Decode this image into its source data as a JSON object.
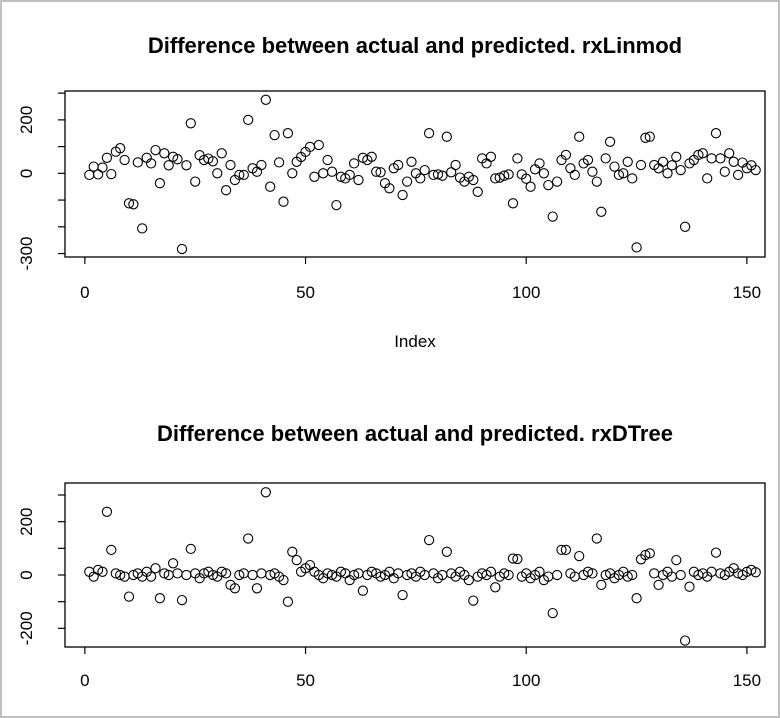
{
  "window": {
    "background": "#ffffff",
    "border_color": "#c0c0c0",
    "plot_color": "#000000"
  },
  "chart_data": [
    {
      "type": "scatter",
      "title": "Difference between actual and predicted. rxLinmod",
      "xlabel": "Index",
      "ylabel": "",
      "marker": "open-circle",
      "marker_color": "#000000",
      "grid": false,
      "xlim": [
        -4.5,
        154.1
      ],
      "ylim": [
        -313,
        308
      ],
      "xticks": [
        0,
        50,
        100,
        150
      ],
      "xtick_labels": [
        "0",
        "50",
        "100",
        "150"
      ],
      "yticks": [
        300,
        200,
        100,
        0,
        -100,
        -200,
        -300
      ],
      "ytick_labels_shown": {
        "200": "200",
        "0": "0",
        "-300": "-300"
      },
      "points": [
        [
          1,
          -6
        ],
        [
          2,
          25
        ],
        [
          3,
          -4
        ],
        [
          4,
          22
        ],
        [
          5,
          58
        ],
        [
          6,
          -3
        ],
        [
          7,
          81
        ],
        [
          8,
          94
        ],
        [
          9,
          50
        ],
        [
          10,
          -112
        ],
        [
          11,
          -116
        ],
        [
          12,
          41
        ],
        [
          13,
          -206
        ],
        [
          14,
          58
        ],
        [
          15,
          37
        ],
        [
          16,
          87
        ],
        [
          17,
          -37
        ],
        [
          18,
          75
        ],
        [
          19,
          30
        ],
        [
          20,
          62
        ],
        [
          21,
          53
        ],
        [
          22,
          -283
        ],
        [
          23,
          30
        ],
        [
          24,
          187
        ],
        [
          25,
          -31
        ],
        [
          26,
          68
        ],
        [
          27,
          50
        ],
        [
          28,
          55
        ],
        [
          29,
          45
        ],
        [
          30,
          0
        ],
        [
          31,
          75
        ],
        [
          32,
          -63
        ],
        [
          33,
          31
        ],
        [
          34,
          -25
        ],
        [
          35,
          -6
        ],
        [
          36,
          -6
        ],
        [
          37,
          200
        ],
        [
          38,
          19
        ],
        [
          39,
          6
        ],
        [
          40,
          31
        ],
        [
          41,
          275
        ],
        [
          42,
          -50
        ],
        [
          43,
          143
        ],
        [
          44,
          41
        ],
        [
          45,
          -106
        ],
        [
          46,
          150
        ],
        [
          47,
          0
        ],
        [
          48,
          43
        ],
        [
          49,
          61
        ],
        [
          50,
          80
        ],
        [
          51,
          99
        ],
        [
          52,
          -13
        ],
        [
          53,
          106
        ],
        [
          54,
          0
        ],
        [
          55,
          50
        ],
        [
          56,
          6
        ],
        [
          57,
          -119
        ],
        [
          58,
          -13
        ],
        [
          59,
          -19
        ],
        [
          60,
          -6
        ],
        [
          61,
          37
        ],
        [
          62,
          -25
        ],
        [
          63,
          58
        ],
        [
          64,
          50
        ],
        [
          65,
          62
        ],
        [
          66,
          6
        ],
        [
          67,
          4
        ],
        [
          68,
          -37
        ],
        [
          69,
          -56
        ],
        [
          70,
          19
        ],
        [
          71,
          31
        ],
        [
          72,
          -81
        ],
        [
          73,
          -31
        ],
        [
          74,
          43
        ],
        [
          75,
          0
        ],
        [
          76,
          -19
        ],
        [
          77,
          12
        ],
        [
          78,
          150
        ],
        [
          79,
          -6
        ],
        [
          80,
          -4
        ],
        [
          81,
          -9
        ],
        [
          82,
          137
        ],
        [
          83,
          4
        ],
        [
          84,
          31
        ],
        [
          85,
          -16
        ],
        [
          86,
          -31
        ],
        [
          87,
          -13
        ],
        [
          88,
          -25
        ],
        [
          89,
          -69
        ],
        [
          90,
          56
        ],
        [
          91,
          37
        ],
        [
          92,
          62
        ],
        [
          93,
          -19
        ],
        [
          94,
          -16
        ],
        [
          95,
          -9
        ],
        [
          96,
          -4
        ],
        [
          97,
          -112
        ],
        [
          98,
          56
        ],
        [
          99,
          -4
        ],
        [
          100,
          -20
        ],
        [
          101,
          -50
        ],
        [
          102,
          15
        ],
        [
          103,
          37
        ],
        [
          104,
          0
        ],
        [
          105,
          -44
        ],
        [
          106,
          -162
        ],
        [
          107,
          -31
        ],
        [
          108,
          50
        ],
        [
          109,
          69
        ],
        [
          110,
          19
        ],
        [
          111,
          -6
        ],
        [
          112,
          137
        ],
        [
          113,
          37
        ],
        [
          114,
          50
        ],
        [
          115,
          6
        ],
        [
          116,
          -31
        ],
        [
          117,
          -144
        ],
        [
          118,
          56
        ],
        [
          119,
          118
        ],
        [
          120,
          25
        ],
        [
          121,
          -6
        ],
        [
          122,
          0
        ],
        [
          123,
          43
        ],
        [
          124,
          -19
        ],
        [
          125,
          -277
        ],
        [
          126,
          31
        ],
        [
          127,
          133
        ],
        [
          128,
          137
        ],
        [
          129,
          31
        ],
        [
          130,
          19
        ],
        [
          131,
          43
        ],
        [
          132,
          0
        ],
        [
          133,
          30
        ],
        [
          134,
          62
        ],
        [
          135,
          12
        ],
        [
          136,
          -200
        ],
        [
          137,
          37
        ],
        [
          138,
          50
        ],
        [
          139,
          69
        ],
        [
          140,
          75
        ],
        [
          141,
          -19
        ],
        [
          142,
          56
        ],
        [
          143,
          150
        ],
        [
          144,
          56
        ],
        [
          145,
          6
        ],
        [
          146,
          75
        ],
        [
          147,
          43
        ],
        [
          148,
          -6
        ],
        [
          149,
          40
        ],
        [
          150,
          19
        ],
        [
          151,
          30
        ],
        [
          152,
          12
        ]
      ]
    },
    {
      "type": "scatter",
      "title": "Difference between actual and predicted. rxDTree",
      "xlabel": "",
      "ylabel": "",
      "marker": "open-circle",
      "marker_color": "#000000",
      "grid": false,
      "xlim": [
        -4.5,
        154.1
      ],
      "ylim": [
        -270,
        345
      ],
      "xticks": [
        0,
        50,
        100,
        150
      ],
      "xtick_labels": [
        "0",
        "50",
        "100",
        "150"
      ],
      "yticks": [
        300,
        200,
        100,
        0,
        -100,
        -200
      ],
      "ytick_labels_shown": {
        "200": "200",
        "0": "0",
        "-200": "-200"
      },
      "points": [
        [
          1,
          12
        ],
        [
          2,
          -6
        ],
        [
          3,
          19
        ],
        [
          4,
          12
        ],
        [
          5,
          237
        ],
        [
          6,
          94
        ],
        [
          7,
          6
        ],
        [
          8,
          0
        ],
        [
          9,
          -6
        ],
        [
          10,
          -81
        ],
        [
          11,
          0
        ],
        [
          12,
          6
        ],
        [
          13,
          -6
        ],
        [
          14,
          12
        ],
        [
          15,
          -6
        ],
        [
          16,
          25
        ],
        [
          17,
          -87
        ],
        [
          18,
          6
        ],
        [
          19,
          0
        ],
        [
          20,
          44
        ],
        [
          21,
          6
        ],
        [
          22,
          -94
        ],
        [
          23,
          0
        ],
        [
          24,
          98
        ],
        [
          25,
          6
        ],
        [
          26,
          -12
        ],
        [
          27,
          6
        ],
        [
          28,
          12
        ],
        [
          29,
          0
        ],
        [
          30,
          -6
        ],
        [
          31,
          12
        ],
        [
          32,
          6
        ],
        [
          33,
          -37
        ],
        [
          34,
          -50
        ],
        [
          35,
          0
        ],
        [
          36,
          6
        ],
        [
          37,
          137
        ],
        [
          38,
          0
        ],
        [
          39,
          -50
        ],
        [
          40,
          6
        ],
        [
          41,
          310
        ],
        [
          42,
          0
        ],
        [
          43,
          6
        ],
        [
          44,
          -6
        ],
        [
          45,
          -19
        ],
        [
          46,
          -100
        ],
        [
          47,
          87
        ],
        [
          48,
          56
        ],
        [
          49,
          12
        ],
        [
          50,
          25
        ],
        [
          51,
          37
        ],
        [
          52,
          12
        ],
        [
          53,
          0
        ],
        [
          54,
          -12
        ],
        [
          55,
          6
        ],
        [
          56,
          0
        ],
        [
          57,
          -6
        ],
        [
          58,
          12
        ],
        [
          59,
          6
        ],
        [
          60,
          -19
        ],
        [
          61,
          0
        ],
        [
          62,
          6
        ],
        [
          63,
          -59
        ],
        [
          64,
          0
        ],
        [
          65,
          12
        ],
        [
          66,
          6
        ],
        [
          67,
          -6
        ],
        [
          68,
          0
        ],
        [
          69,
          12
        ],
        [
          70,
          -12
        ],
        [
          71,
          6
        ],
        [
          72,
          -75
        ],
        [
          73,
          0
        ],
        [
          74,
          6
        ],
        [
          75,
          -6
        ],
        [
          76,
          12
        ],
        [
          77,
          0
        ],
        [
          78,
          131
        ],
        [
          79,
          6
        ],
        [
          80,
          -12
        ],
        [
          81,
          0
        ],
        [
          82,
          87
        ],
        [
          83,
          6
        ],
        [
          84,
          -6
        ],
        [
          85,
          12
        ],
        [
          86,
          0
        ],
        [
          87,
          -19
        ],
        [
          88,
          -96
        ],
        [
          89,
          -6
        ],
        [
          90,
          6
        ],
        [
          91,
          0
        ],
        [
          92,
          12
        ],
        [
          93,
          -46
        ],
        [
          94,
          -6
        ],
        [
          95,
          6
        ],
        [
          96,
          0
        ],
        [
          97,
          62
        ],
        [
          98,
          60
        ],
        [
          99,
          -6
        ],
        [
          100,
          6
        ],
        [
          101,
          -12
        ],
        [
          102,
          0
        ],
        [
          103,
          12
        ],
        [
          104,
          -19
        ],
        [
          105,
          -6
        ],
        [
          106,
          -143
        ],
        [
          107,
          0
        ],
        [
          108,
          94
        ],
        [
          109,
          94
        ],
        [
          110,
          6
        ],
        [
          111,
          -6
        ],
        [
          112,
          71
        ],
        [
          113,
          0
        ],
        [
          114,
          12
        ],
        [
          115,
          6
        ],
        [
          116,
          137
        ],
        [
          117,
          -37
        ],
        [
          118,
          0
        ],
        [
          119,
          6
        ],
        [
          120,
          -12
        ],
        [
          121,
          0
        ],
        [
          122,
          12
        ],
        [
          123,
          -6
        ],
        [
          124,
          0
        ],
        [
          125,
          -87
        ],
        [
          126,
          59
        ],
        [
          127,
          75
        ],
        [
          128,
          81
        ],
        [
          129,
          6
        ],
        [
          130,
          -37
        ],
        [
          131,
          0
        ],
        [
          132,
          12
        ],
        [
          133,
          -6
        ],
        [
          134,
          56
        ],
        [
          135,
          0
        ],
        [
          136,
          -246
        ],
        [
          137,
          -44
        ],
        [
          138,
          12
        ],
        [
          139,
          0
        ],
        [
          140,
          6
        ],
        [
          141,
          -6
        ],
        [
          142,
          12
        ],
        [
          143,
          84
        ],
        [
          144,
          6
        ],
        [
          145,
          0
        ],
        [
          146,
          12
        ],
        [
          147,
          25
        ],
        [
          148,
          6
        ],
        [
          149,
          0
        ],
        [
          150,
          12
        ],
        [
          151,
          19
        ],
        [
          152,
          10
        ]
      ]
    }
  ]
}
